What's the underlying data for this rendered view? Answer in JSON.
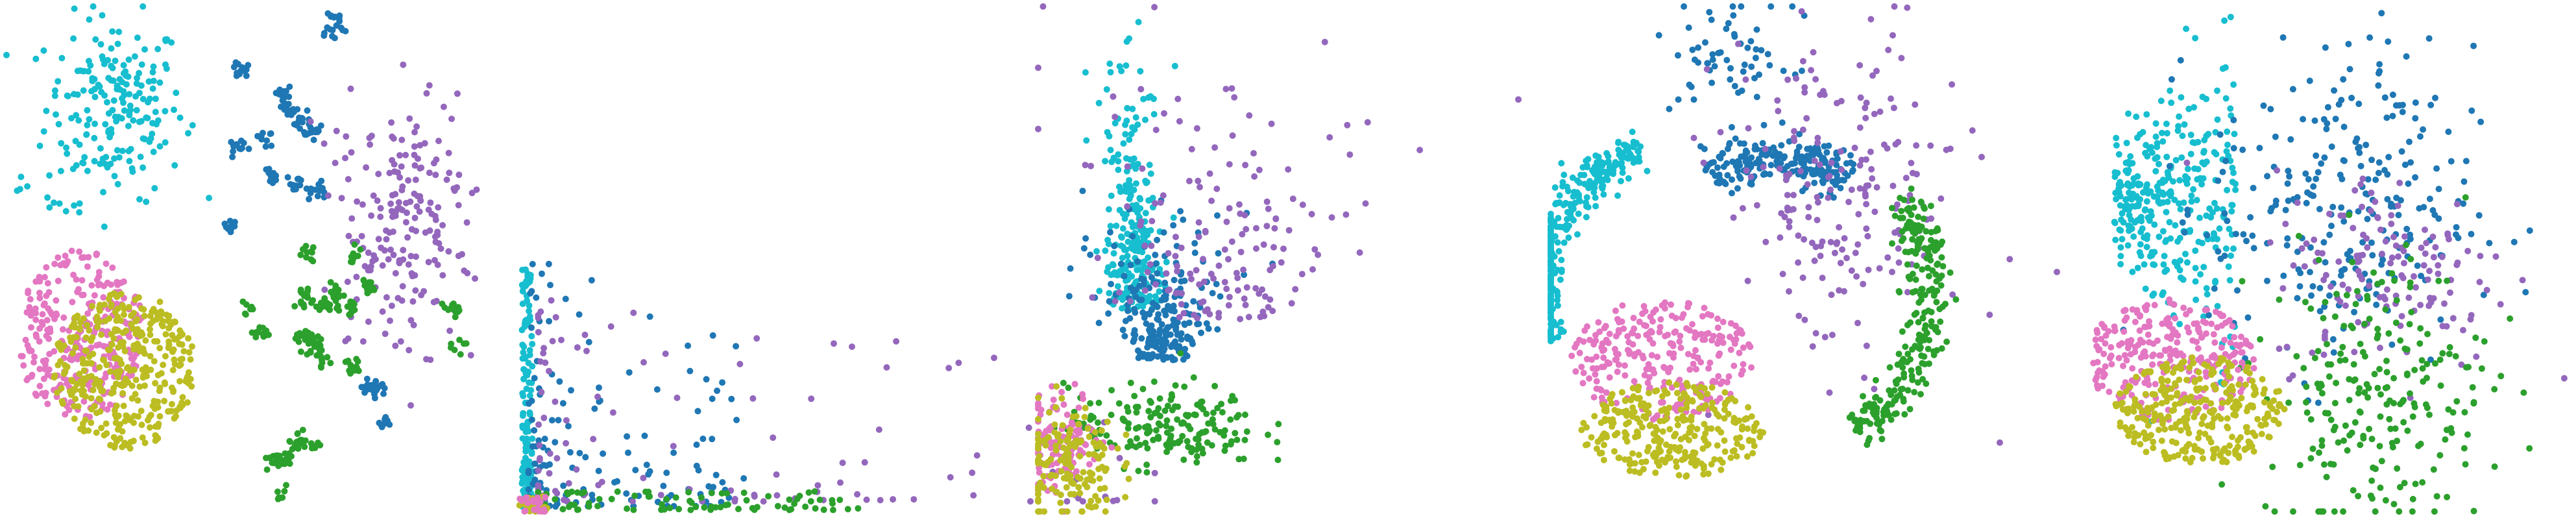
{
  "figure": {
    "panel_count": 5,
    "class_colors": {
      "cyan": "#17becf",
      "blue": "#1f77b4",
      "purple": "#9467bd",
      "green": "#2ca02c",
      "pink": "#e377c2",
      "olive": "#bcbd22"
    }
  },
  "chart_data": [
    {
      "type": "scatter",
      "panel": 1,
      "axes_visible": false,
      "grid": false,
      "legend": "none",
      "xlim": [
        0,
        100
      ],
      "ylim": [
        0,
        100
      ],
      "clusters": [
        {
          "color": "#17becf",
          "center": [
            22,
            80
          ],
          "spread": [
            7,
            9
          ],
          "count": 200,
          "shape": "blob"
        },
        {
          "color": "#17becf",
          "center": [
            3,
            64
          ],
          "spread": [
            1,
            1
          ],
          "count": 4,
          "shape": "blob"
        },
        {
          "color": "#17becf",
          "center": [
            11,
            61
          ],
          "spread": [
            1.5,
            1
          ],
          "count": 6,
          "shape": "blob"
        },
        {
          "color": "#e377c2",
          "center": [
            15,
            35
          ],
          "spread": [
            11,
            14
          ],
          "count": 300,
          "shape": "disc"
        },
        {
          "color": "#bcbd22",
          "center": [
            24,
            28
          ],
          "spread": [
            12,
            13
          ],
          "count": 360,
          "shape": "disc"
        },
        {
          "color": "#1f77b4",
          "center": [
            52,
            70
          ],
          "spread": [
            8,
            12
          ],
          "count": 140,
          "shape": "clumps"
        },
        {
          "color": "#1f77b4",
          "center": [
            66,
            96
          ],
          "spread": [
            1.5,
            2
          ],
          "count": 20,
          "shape": "blob"
        },
        {
          "color": "#1f77b4",
          "center": [
            74,
            20
          ],
          "spread": [
            2,
            6
          ],
          "count": 30,
          "shape": "clumps"
        },
        {
          "color": "#9467bd",
          "center": [
            80,
            57
          ],
          "spread": [
            7,
            12
          ],
          "count": 200,
          "shape": "blob"
        },
        {
          "color": "#2ca02c",
          "center": [
            66,
            38
          ],
          "spread": [
            7,
            14
          ],
          "count": 170,
          "shape": "clumps"
        },
        {
          "color": "#2ca02c",
          "center": [
            57,
            12
          ],
          "spread": [
            3,
            9
          ],
          "count": 60,
          "shape": "clumps"
        },
        {
          "color": "#2ca02c",
          "center": [
            90,
            38
          ],
          "spread": [
            1.5,
            4
          ],
          "count": 24,
          "shape": "clumps"
        }
      ]
    },
    {
      "type": "scatter",
      "panel": 2,
      "axes_visible": false,
      "grid": false,
      "legend": "none",
      "xlim": [
        0,
        100
      ],
      "ylim": [
        0,
        100
      ],
      "clusters": [
        {
          "color": "#17becf",
          "shape": "vstrip",
          "x_range": [
            0.3,
            1.4
          ],
          "y_range": [
            1,
            48
          ],
          "count": 150
        },
        {
          "color": "#1f77b4",
          "shape": "fan",
          "x_range": [
            1,
            24
          ],
          "y_range": [
            1,
            52
          ],
          "count": 140
        },
        {
          "color": "#9467bd",
          "shape": "fan",
          "x_range": [
            2,
            68
          ],
          "y_range": [
            2,
            45
          ],
          "count": 120
        },
        {
          "color": "#2ca02c",
          "shape": "hstrip",
          "x_range": [
            1,
            36
          ],
          "y_range": [
            0.3,
            4
          ],
          "count": 80
        },
        {
          "color": "#bcbd22",
          "shape": "corner",
          "x_range": [
            0,
            3
          ],
          "y_range": [
            0,
            3
          ],
          "count": 30
        },
        {
          "color": "#e377c2",
          "shape": "corner",
          "x_range": [
            0,
            3
          ],
          "y_range": [
            0,
            3
          ],
          "count": 20
        }
      ]
    },
    {
      "type": "scatter",
      "panel": 3,
      "axes_visible": false,
      "grid": false,
      "legend": "none",
      "xlim": [
        0,
        100
      ],
      "ylim": [
        0,
        100
      ],
      "clusters": [
        {
          "color": "#17becf",
          "center": [
            20,
            44
          ],
          "spread": [
            3,
            14
          ],
          "count": 260,
          "shape": "column"
        },
        {
          "color": "#1f77b4",
          "center": [
            26,
            30
          ],
          "spread": [
            7,
            12
          ],
          "count": 220,
          "shape": "fan_up"
        },
        {
          "color": "#9467bd",
          "center": [
            38,
            38
          ],
          "spread": [
            18,
            22
          ],
          "count": 160,
          "shape": "fan_up"
        },
        {
          "color": "#2ca02c",
          "center": [
            26,
            17
          ],
          "spread": [
            10,
            4
          ],
          "count": 180,
          "shape": "blob"
        },
        {
          "color": "#e377c2",
          "center": [
            5,
            14
          ],
          "spread": [
            4,
            5
          ],
          "count": 120,
          "shape": "blob"
        },
        {
          "color": "#bcbd22",
          "center": [
            6,
            10
          ],
          "spread": [
            5,
            6
          ],
          "count": 150,
          "shape": "blob"
        }
      ]
    },
    {
      "type": "scatter",
      "panel": 4,
      "axes_visible": false,
      "grid": false,
      "legend": "none",
      "xlim": [
        0,
        100
      ],
      "ylim": [
        0,
        100
      ],
      "clusters": [
        {
          "color": "#17becf",
          "shape": "arc",
          "arc": [
            28,
            44,
            30,
            110,
            200
          ],
          "count": 300
        },
        {
          "color": "#1f77b4",
          "shape": "arc",
          "arc": [
            45,
            42,
            28,
            60,
            120
          ],
          "count": 220
        },
        {
          "color": "#1f77b4",
          "center": [
            36,
            90
          ],
          "spread": [
            6,
            6
          ],
          "count": 60,
          "shape": "blob"
        },
        {
          "color": "#9467bd",
          "center": [
            58,
            62
          ],
          "spread": [
            12,
            16
          ],
          "count": 200,
          "shape": "blob"
        },
        {
          "color": "#2ca02c",
          "shape": "arc",
          "arc": [
            45,
            42,
            30,
            -60,
            40
          ],
          "count": 260
        },
        {
          "color": "#e377c2",
          "center": [
            22,
            30
          ],
          "spread": [
            15,
            10
          ],
          "count": 260,
          "shape": "disc"
        },
        {
          "color": "#bcbd22",
          "center": [
            24,
            16
          ],
          "spread": [
            15,
            8
          ],
          "count": 280,
          "shape": "disc"
        }
      ]
    },
    {
      "type": "scatter",
      "panel": 5,
      "axes_visible": false,
      "grid": false,
      "legend": "none",
      "xlim": [
        0,
        100
      ],
      "ylim": [
        0,
        100
      ],
      "clusters": [
        {
          "color": "#17becf",
          "center": [
            22,
            62
          ],
          "spread": [
            12,
            17
          ],
          "count": 330,
          "shape": "fan_left"
        },
        {
          "color": "#1f77b4",
          "center": [
            55,
            60
          ],
          "spread": [
            13,
            16
          ],
          "count": 260,
          "shape": "blob"
        },
        {
          "color": "#9467bd",
          "center": [
            65,
            48
          ],
          "spread": [
            12,
            10
          ],
          "count": 140,
          "shape": "blob"
        },
        {
          "color": "#2ca02c",
          "center": [
            62,
            24
          ],
          "spread": [
            11,
            14
          ],
          "count": 230,
          "shape": "blob"
        },
        {
          "color": "#e377c2",
          "center": [
            21,
            30
          ],
          "spread": [
            14,
            10
          ],
          "count": 270,
          "shape": "disc"
        },
        {
          "color": "#bcbd22",
          "center": [
            27,
            20
          ],
          "spread": [
            14,
            9
          ],
          "count": 300,
          "shape": "disc"
        }
      ]
    }
  ]
}
